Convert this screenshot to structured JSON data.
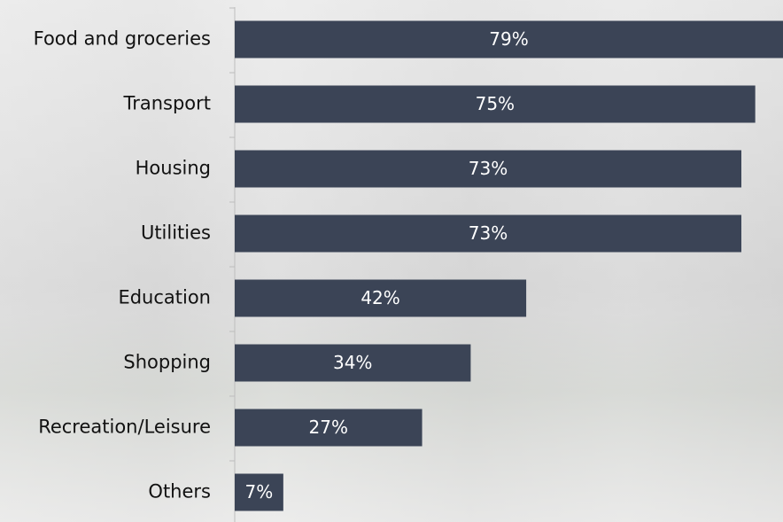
{
  "chart_data": {
    "type": "bar",
    "orientation": "horizontal",
    "categories": [
      "Food and groceries",
      "Transport",
      "Housing",
      "Utilities",
      "Education",
      "Shopping",
      "Recreation/Leisure",
      "Others"
    ],
    "values": [
      79,
      75,
      73,
      73,
      42,
      34,
      27,
      7
    ],
    "value_labels": [
      "79%",
      "75%",
      "73%",
      "73%",
      "42%",
      "34%",
      "27%",
      "7%"
    ],
    "color": "#3b4456"
  }
}
